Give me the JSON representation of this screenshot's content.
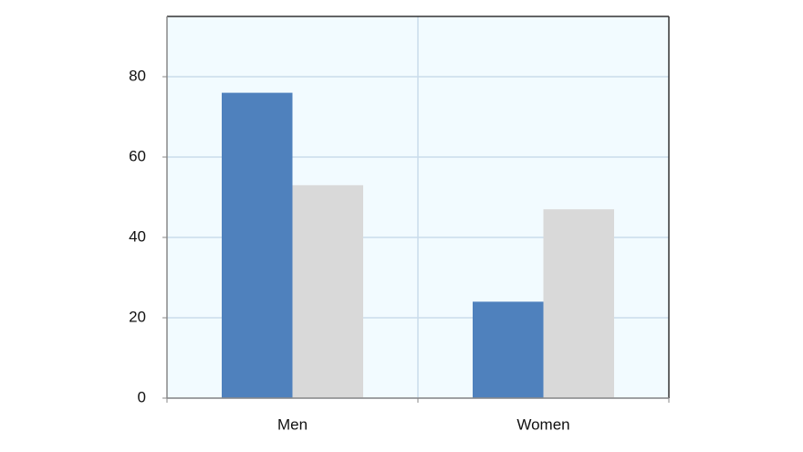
{
  "chart_data": {
    "type": "bar",
    "categories": [
      "Men",
      "Women"
    ],
    "series": [
      {
        "color": "#4f81bd",
        "values": [
          76,
          24
        ]
      },
      {
        "color": "#d9d9d9",
        "values": [
          53,
          47
        ]
      }
    ],
    "ylim": [
      0,
      95
    ],
    "yticks": [
      0,
      20,
      40,
      60,
      80
    ],
    "grid": true
  }
}
